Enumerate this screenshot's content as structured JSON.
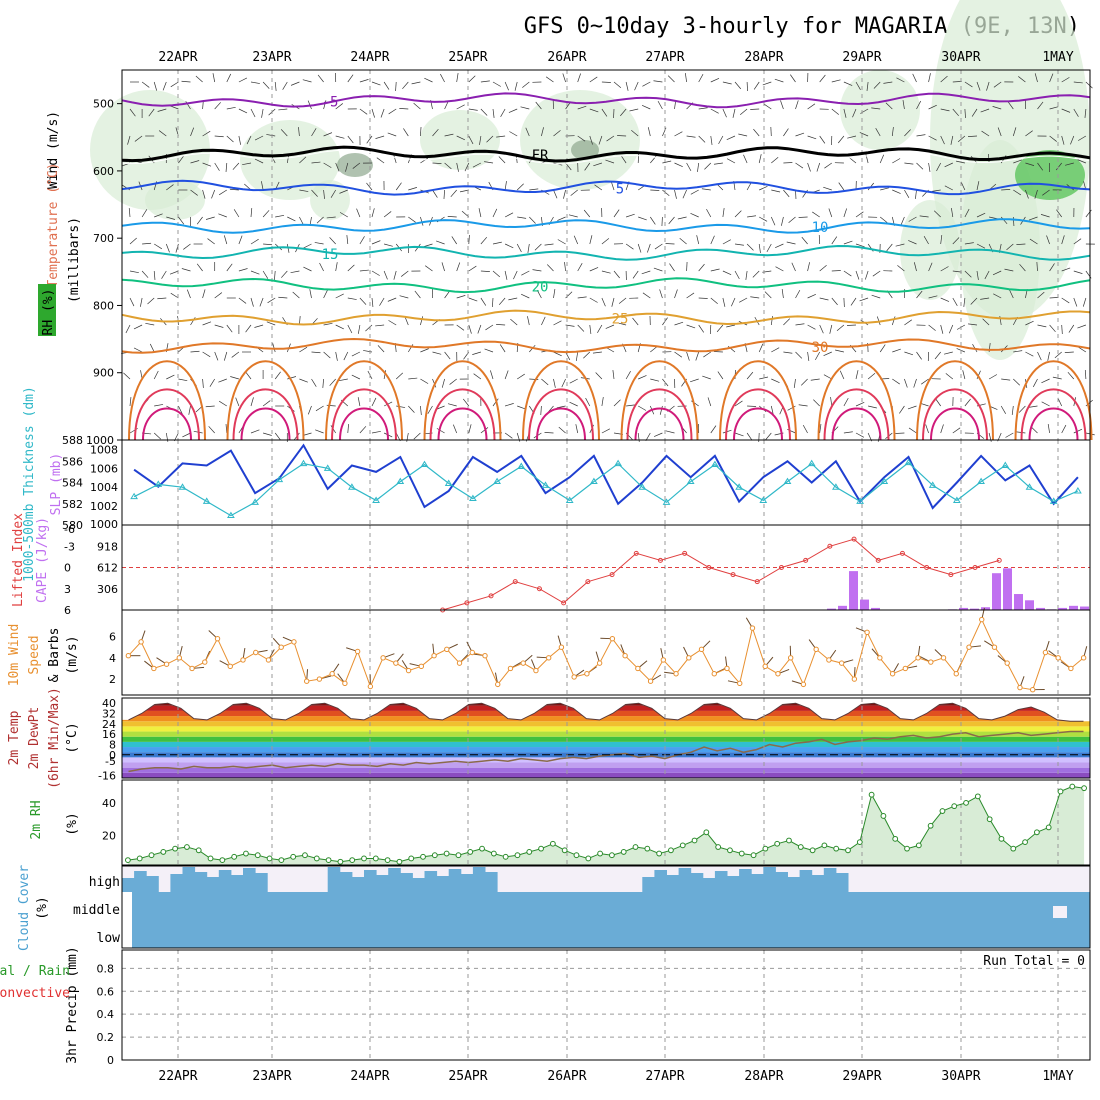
{
  "chart_data": [
    {
      "type": "line",
      "title": "GFS 0~10day 3-hourly for MAGARIA (9E, 13N)",
      "x_dates": [
        "22APR",
        "23APR",
        "24APR",
        "25APR",
        "26APR",
        "27APR",
        "28APR",
        "29APR",
        "30APR",
        "1MAY"
      ],
      "panel": "upper-air",
      "ylabel": "Wind (m/s) Temperature (°C) RH (%) (millibars)",
      "ylabel_parts": {
        "wind": "Wind (m/s)",
        "temp": "Temperature (°C)",
        "rh": "RH (%)",
        "unit": "(millibars)"
      },
      "ylim": [
        1000,
        450
      ],
      "y_ticks": [
        500,
        600,
        700,
        800,
        900,
        1000
      ],
      "freezing_label": "FR",
      "isotherms": [
        {
          "name": "-5",
          "level": 495,
          "color": "#8a1fb0"
        },
        {
          "name": "FR",
          "level": 575,
          "color": "#000000"
        },
        {
          "name": "5",
          "level": 625,
          "color": "#2050e0"
        },
        {
          "name": "10",
          "level": 682,
          "color": "#1a9ae8"
        },
        {
          "name": "15",
          "level": 722,
          "color": "#12b4b0"
        },
        {
          "name": "20",
          "level": 770,
          "color": "#10c080"
        },
        {
          "name": "25",
          "level": 818,
          "color": "#e0a030"
        },
        {
          "name": "30",
          "level": 860,
          "color": "#e07828"
        }
      ],
      "rh_contours": [
        "10",
        "30"
      ]
    },
    {
      "type": "line",
      "panel": "thickness-slp",
      "ylabel_left": "1000-500mb Thickness (dm)",
      "ylabel_right": "SLP (mb)",
      "thickness_ticks": [
        580,
        582,
        584,
        586,
        588
      ],
      "slp_ticks": [
        1002,
        1004,
        1006,
        1008
      ],
      "slp_bottom_tick": 1000,
      "series": [
        {
          "name": "thickness",
          "color": "#1f3fd0",
          "values": [
            585.2,
            583.6,
            585.8,
            585.6,
            587.0,
            583.0,
            584.4,
            587.5,
            583.4,
            585.6,
            585.0,
            586.4,
            581.7,
            583.2,
            586.4,
            585.0,
            586.5,
            583.0,
            584.5,
            586.5,
            582.0,
            584.0,
            586.5,
            584.5,
            586.5,
            582.2,
            584.5,
            586.0,
            584.0,
            586.0,
            582.2,
            584.5,
            586.4,
            581.6,
            584.0,
            586.5,
            584.2,
            585.6,
            582.0,
            584.5
          ]
        },
        {
          "name": "slp",
          "color": "#30b8c8",
          "values": [
            1003.0,
            1004.3,
            1004.0,
            1002.5,
            1001.0,
            1002.4,
            1004.8,
            1006.5,
            1006.0,
            1004.0,
            1002.6,
            1004.6,
            1006.4,
            1004.4,
            1002.8,
            1004.6,
            1006.2,
            1004.2,
            1002.6,
            1004.6,
            1006.5,
            1004.0,
            1002.4,
            1004.6,
            1006.4,
            1004.0,
            1002.6,
            1004.6,
            1006.5,
            1004.0,
            1002.5,
            1004.6,
            1006.6,
            1004.2,
            1002.6,
            1004.6,
            1006.3,
            1004.0,
            1002.5,
            1003.6
          ]
        }
      ]
    },
    {
      "type": "bar",
      "panel": "li-cape",
      "ylabel_left": "Lifted Index",
      "ylabel_right": "CAPE (J/kg)",
      "li_ticks": [
        "-3",
        "0",
        "3",
        "6"
      ],
      "li_top": "-6",
      "cape_ticks": [
        "918",
        "612",
        "306"
      ],
      "li_series": {
        "name": "Lifted Index",
        "color": "#e04040",
        "start_index": 26,
        "values": [
          6,
          5,
          4,
          2,
          3,
          5,
          2,
          1,
          -2,
          -1,
          -2,
          0,
          1,
          2,
          0,
          -1,
          -3,
          -4,
          -1,
          -2,
          0,
          1,
          0,
          -1
        ]
      },
      "cape_series": {
        "name": "CAPE",
        "color": "#c070f0",
        "values": [
          0,
          0,
          0,
          0,
          0,
          0,
          0,
          0,
          0,
          0,
          0,
          0,
          0,
          0,
          0,
          0,
          0,
          0,
          0,
          0,
          0,
          0,
          0,
          0,
          0,
          0,
          0,
          0,
          0,
          0,
          0,
          0,
          0,
          0,
          0,
          0,
          0,
          0,
          0,
          0,
          0,
          0,
          0,
          0,
          0,
          0,
          0,
          0,
          0,
          0,
          0,
          0,
          0,
          0,
          0,
          0,
          0,
          0,
          0,
          0,
          0,
          0,
          0,
          0,
          20,
          60,
          560,
          150,
          30,
          0,
          0,
          0,
          0,
          0,
          0,
          10,
          30,
          20,
          40,
          530,
          600,
          230,
          140,
          30,
          10,
          30,
          60,
          50
        ]
      }
    },
    {
      "type": "line",
      "panel": "wind-10m",
      "ylabel": "10m Wind Speed & Barbs (m/s)",
      "ylabel_parts": {
        "a": "10m Wind",
        "b": "Speed",
        "c": "& Barbs",
        "d": "(m/s)"
      },
      "y_ticks": [
        2,
        4,
        6
      ],
      "series": [
        {
          "name": "speed",
          "color": "#e89030",
          "values": [
            4.2,
            5.5,
            3.0,
            3.4,
            4.0,
            3.0,
            3.6,
            5.8,
            3.2,
            3.8,
            4.5,
            3.8,
            5.0,
            5.5,
            1.8,
            2.0,
            2.5,
            1.6,
            4.6,
            1.3,
            4.0,
            3.5,
            2.8,
            3.2,
            4.2,
            4.8,
            3.5,
            4.5,
            4.2,
            1.5,
            3.0,
            3.5,
            2.8,
            4.0,
            5.0,
            2.2,
            2.5,
            3.5,
            5.8,
            4.2,
            3.0,
            1.8,
            3.8,
            2.5,
            4.0,
            4.8,
            2.5,
            3.0,
            1.6,
            6.8,
            3.2,
            2.5,
            4.0,
            1.5,
            4.8,
            3.8,
            3.5,
            2.0,
            6.4,
            4.0,
            2.5,
            3.0,
            4.0,
            3.6,
            4.0,
            2.5,
            5.0,
            7.6,
            5.0,
            3.5,
            1.2,
            1.0,
            4.5,
            4.0,
            3.0,
            4.0
          ]
        }
      ]
    },
    {
      "type": "area",
      "panel": "temp-2m",
      "ylabel": "2m Temp 2m DewPt (6hr Min/Max) (°C)",
      "ylabel_parts": {
        "a": "2m Temp",
        "b": "2m DewPt",
        "c": "(6hr Min/Max)",
        "d": "(°C)"
      },
      "y_ticks": [
        "40",
        "32",
        "24",
        "16",
        "8",
        "0",
        "-5",
        "-16"
      ],
      "temp": [
        27,
        32,
        39,
        40,
        36,
        28,
        27,
        32,
        39,
        40,
        36,
        28,
        27,
        32,
        39,
        40,
        36,
        28,
        27,
        32,
        39,
        40,
        36,
        28,
        27,
        32,
        39,
        40,
        36,
        28,
        27,
        32,
        39,
        40,
        36,
        28,
        27,
        32,
        39,
        40,
        36,
        28,
        27,
        32,
        39,
        40,
        36,
        28,
        27,
        32,
        39,
        40,
        36,
        28,
        27,
        32,
        39,
        40,
        36,
        28,
        27,
        32,
        39,
        40,
        36,
        28,
        27,
        30,
        35,
        37,
        33,
        27,
        26,
        26
      ],
      "dewpt": [
        -13,
        -11,
        -10,
        -10,
        -11,
        -9,
        -10,
        -10,
        -9,
        -10,
        -9,
        -8,
        -10,
        -9,
        -8,
        -9,
        -7,
        -8,
        -8,
        -9,
        -7,
        -8,
        -6,
        -7,
        -6,
        -5,
        -6,
        -5,
        -4,
        -5,
        -3,
        -4,
        -5,
        -3,
        -2,
        -3,
        -1,
        0,
        1,
        -2,
        -1,
        -3,
        0,
        2,
        6,
        3,
        5,
        2,
        4,
        8,
        6,
        9,
        10,
        12,
        8,
        10,
        11,
        13,
        12,
        14,
        15,
        13,
        14,
        16,
        17,
        14,
        15,
        16,
        17,
        15,
        16,
        17,
        18,
        18
      ]
    },
    {
      "type": "area",
      "panel": "rh-2m",
      "ylabel": "2m RH (%)",
      "ylabel_parts": {
        "a": "2m RH",
        "b": "(%)"
      },
      "y_ticks": [
        20,
        40
      ],
      "series": [
        {
          "name": "rh",
          "color": "#2a8a2a",
          "values": [
            5,
            6,
            8,
            10,
            12,
            13,
            11,
            6,
            5,
            7,
            9,
            8,
            6,
            5,
            7,
            8,
            6,
            5,
            4,
            5,
            6,
            6,
            5,
            4,
            6,
            7,
            8,
            9,
            8,
            10,
            12,
            9,
            7,
            8,
            10,
            12,
            15,
            11,
            8,
            6,
            9,
            8,
            10,
            13,
            12,
            9,
            11,
            14,
            17,
            22,
            13,
            11,
            9,
            8,
            12,
            15,
            17,
            13,
            11,
            14,
            12,
            11,
            16,
            45,
            32,
            18,
            12,
            14,
            26,
            35,
            38,
            40,
            44,
            30,
            18,
            12,
            16,
            22,
            25,
            47,
            50,
            49
          ]
        }
      ]
    },
    {
      "type": "bar",
      "panel": "cloud-cover",
      "ylabel": "Cloud Cover (%)",
      "ylabel_parts": {
        "a": "Cloud Cover",
        "b": "(%)"
      },
      "row_labels": [
        "high",
        "middle",
        "low"
      ],
      "color": "#6aacd6",
      "high_gaps": [
        3,
        12,
        13,
        14,
        15,
        16,
        31,
        32,
        33,
        34,
        35,
        36,
        37,
        38,
        39,
        40,
        41,
        42,
        60,
        61,
        62,
        63,
        64,
        65,
        66,
        67,
        68,
        69,
        70,
        71,
        72,
        73,
        74,
        75,
        76,
        77,
        78,
        79
      ]
    },
    {
      "type": "bar",
      "panel": "precip",
      "ylabel": "3hr Precip (mm)",
      "legend": [
        "Total / Rain",
        "Convective"
      ],
      "legend_colors": [
        "#2a9a2a",
        "#e03030"
      ],
      "y_ticks": [
        "0",
        "0.2",
        "0.4",
        "0.6",
        "0.8"
      ],
      "annotation": "Run Total = 0",
      "values": []
    }
  ]
}
